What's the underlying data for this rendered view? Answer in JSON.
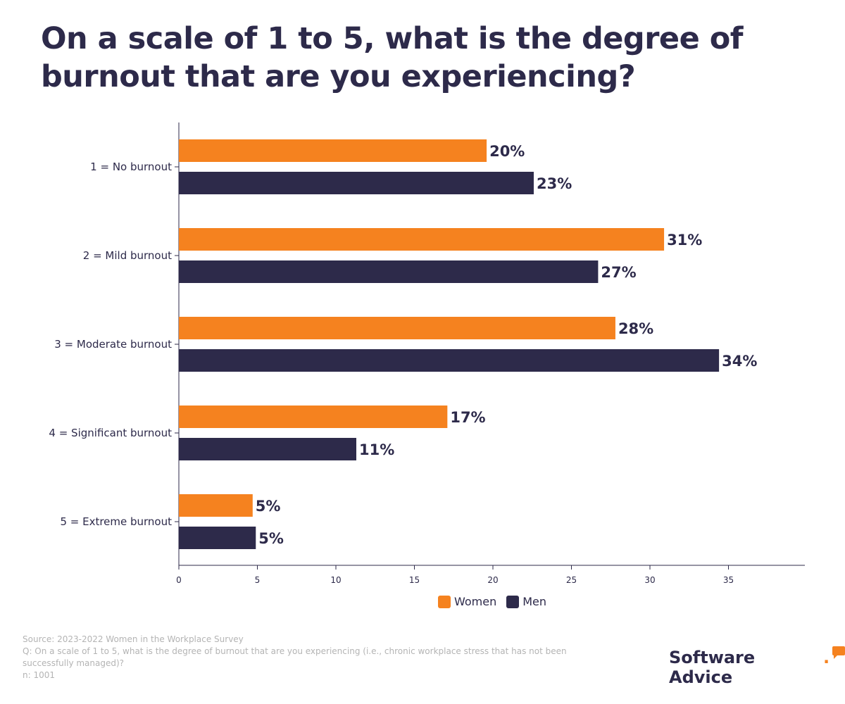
{
  "title": "On a scale of 1 to 5, what is the degree of burnout that are you experiencing?",
  "chart_data": {
    "type": "bar",
    "orientation": "horizontal",
    "categories": [
      "1 = No burnout",
      "2 = Mild burnout",
      "3 = Moderate burnout",
      "4 = Significant burnout",
      "5 = Extreme burnout"
    ],
    "series": [
      {
        "name": "Women",
        "color": "#f5821f",
        "values": [
          19.6,
          30.9,
          27.8,
          17.1,
          4.7
        ],
        "labels": [
          "20%",
          "31%",
          "28%",
          "17%",
          "5%"
        ]
      },
      {
        "name": "Men",
        "color": "#2d2a4a",
        "values": [
          22.6,
          26.7,
          34.4,
          11.3,
          4.9
        ],
        "labels": [
          "23%",
          "27%",
          "34%",
          "11%",
          "5%"
        ]
      }
    ],
    "xticks": [
      0,
      5,
      10,
      15,
      20,
      25,
      30,
      35
    ],
    "xlim": [
      0,
      40
    ],
    "grid": false,
    "legend_position": "bottom"
  },
  "footer": {
    "source": "Source: 2023-2022 Women in the Workplace Survey",
    "question": "Q: On a scale of 1 to 5, what is the degree of burnout that are you experiencing (i.e., chronic workplace stress that has not been successfully managed)?",
    "n": "n: 1001"
  },
  "brand": {
    "name": "Software Advice",
    "dot": "."
  }
}
